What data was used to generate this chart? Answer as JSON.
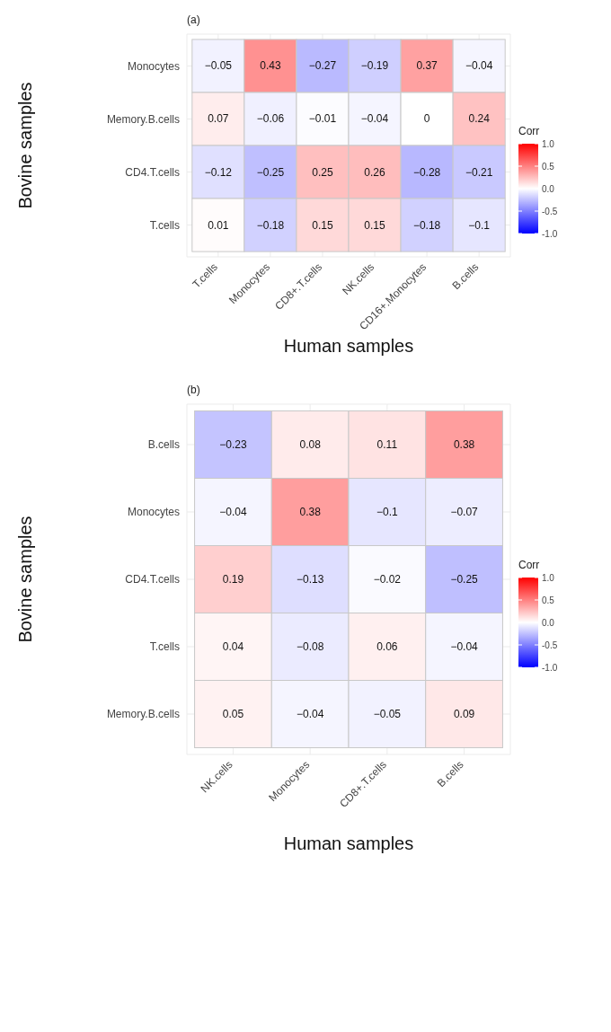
{
  "chart_data": [
    {
      "type": "heatmap",
      "title": "(a)",
      "xlabel": "Human samples",
      "ylabel": "Bovine samples",
      "clabel": "Corr",
      "grid": true,
      "data_labels": true,
      "categories": [
        "T.cells",
        "Monocytes",
        "CD8+.T.cells",
        "NK.cells",
        "CD16+.Monocytes",
        "B.cells"
      ],
      "y_categories": [
        "Monocytes",
        "Memory.B.cells",
        "CD4.T.cells",
        "T.cells"
      ],
      "cells": [
        [
          -0.05,
          0.43,
          -0.27,
          -0.19,
          0.37,
          -0.04
        ],
        [
          0.07,
          -0.06,
          -0.01,
          -0.04,
          0,
          0.24
        ],
        [
          -0.12,
          -0.25,
          0.25,
          0.26,
          -0.28,
          -0.21
        ],
        [
          0.01,
          -0.18,
          0.15,
          0.15,
          -0.18,
          -0.1
        ]
      ],
      "clim": [
        -1,
        1
      ],
      "cticks": [
        {
          "value": -1,
          "label": "-1.0"
        },
        {
          "value": -0.5,
          "label": "-0.5"
        },
        {
          "value": 0,
          "label": "0.0"
        },
        {
          "value": 0.5,
          "label": "0.5"
        },
        {
          "value": 1,
          "label": "1.0"
        }
      ]
    },
    {
      "type": "heatmap",
      "title": "(b)",
      "xlabel": "Human samples",
      "ylabel": "Bovine samples",
      "clabel": "Corr",
      "grid": true,
      "data_labels": true,
      "categories": [
        "NK.cells",
        "Monocytes",
        "CD8+.T.cells",
        "B.cells"
      ],
      "y_categories": [
        "B.cells",
        "Monocytes",
        "CD4.T.cells",
        "T.cells",
        "Memory.B.cells"
      ],
      "cells": [
        [
          -0.23,
          0.08,
          0.11,
          0.38
        ],
        [
          -0.04,
          0.38,
          -0.1,
          -0.07
        ],
        [
          0.19,
          -0.13,
          -0.02,
          -0.25
        ],
        [
          0.04,
          -0.08,
          0.06,
          -0.04
        ],
        [
          0.05,
          -0.04,
          -0.05,
          0.09
        ]
      ],
      "clim": [
        -1,
        1
      ],
      "cticks": [
        {
          "value": -1,
          "label": "-1.0"
        },
        {
          "value": -0.5,
          "label": "-0.5"
        },
        {
          "value": 0,
          "label": "0.0"
        },
        {
          "value": 0.5,
          "label": "0.5"
        },
        {
          "value": 1,
          "label": "1.0"
        }
      ]
    }
  ]
}
